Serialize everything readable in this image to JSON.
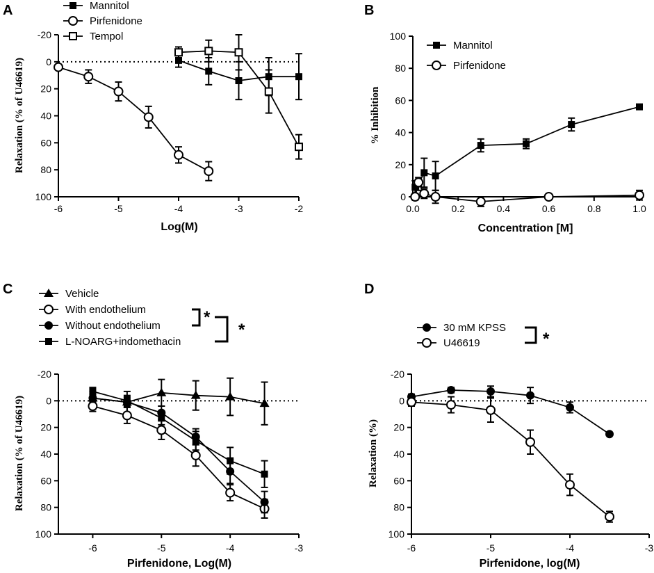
{
  "figure": {
    "colors": {
      "ink": "#000000",
      "open_fill": "#ffffff",
      "filled": "#000000"
    }
  },
  "chart_data": [
    {
      "panel": "A",
      "type": "line",
      "xlabel": "Log(M)",
      "ylabel": "Relaxation (% of U46619)",
      "xlim": [
        -6,
        -2
      ],
      "ylim": [
        -20,
        100
      ],
      "y_inverted": true,
      "xticks": [
        -6,
        -5,
        -4,
        -3,
        -2
      ],
      "yticks": [
        -20,
        0,
        20,
        40,
        60,
        80,
        100
      ],
      "reference_line": 0,
      "legend_position": "top-left",
      "series": [
        {
          "name": "Mannitol",
          "marker": "square-filled",
          "points": [
            {
              "x": -4,
              "y": -1,
              "err": 5
            },
            {
              "x": -3.5,
              "y": 7,
              "err": 10
            },
            {
              "x": -3,
              "y": 14,
              "err": 14
            },
            {
              "x": -2.5,
              "y": 11,
              "err": 14
            },
            {
              "x": -2,
              "y": 11,
              "err": 17
            }
          ]
        },
        {
          "name": "Pirfenidone",
          "marker": "circle-open",
          "points": [
            {
              "x": -6,
              "y": 4,
              "err": 0
            },
            {
              "x": -5.5,
              "y": 11,
              "err": 5
            },
            {
              "x": -5,
              "y": 22,
              "err": 7
            },
            {
              "x": -4.5,
              "y": 41,
              "err": 8
            },
            {
              "x": -4,
              "y": 69,
              "err": 6
            },
            {
              "x": -3.5,
              "y": 81,
              "err": 7
            }
          ]
        },
        {
          "name": "Tempol",
          "marker": "square-open",
          "points": [
            {
              "x": -4,
              "y": -7,
              "err": 4
            },
            {
              "x": -3.5,
              "y": -8,
              "err": 8
            },
            {
              "x": -3,
              "y": -7,
              "err": 13
            },
            {
              "x": -2.5,
              "y": 22,
              "err": 16
            },
            {
              "x": -2,
              "y": 63,
              "err": 9
            }
          ]
        }
      ]
    },
    {
      "panel": "B",
      "type": "line",
      "xlabel": "Concentration [M]",
      "ylabel": "% Inhibition",
      "xlim": [
        0,
        1.0
      ],
      "ylim": [
        0,
        100
      ],
      "y_inverted": false,
      "xticks": [
        "0.0",
        "0.2",
        "0.4",
        "0.6",
        "0.8",
        "1.0"
      ],
      "yticks": [
        0,
        20,
        40,
        60,
        80,
        100
      ],
      "legend_position": "top-left",
      "series": [
        {
          "name": "Mannitol",
          "marker": "square-filled",
          "points": [
            {
              "x": 0.01,
              "y": 6,
              "err": 4
            },
            {
              "x": 0.025,
              "y": 8,
              "err": 4
            },
            {
              "x": 0.05,
              "y": 15,
              "err": 9
            },
            {
              "x": 0.1,
              "y": 13,
              "err": 9
            },
            {
              "x": 0.3,
              "y": 32,
              "err": 4
            },
            {
              "x": 0.5,
              "y": 33,
              "err": 3
            },
            {
              "x": 0.7,
              "y": 45,
              "err": 4
            },
            {
              "x": 1.0,
              "y": 56,
              "err": 1
            }
          ]
        },
        {
          "name": "Pirfenidone",
          "marker": "circle-open",
          "points": [
            {
              "x": 0.01,
              "y": 0,
              "err": 2
            },
            {
              "x": 0.025,
              "y": 9,
              "err": 2
            },
            {
              "x": 0.05,
              "y": 2,
              "err": 3
            },
            {
              "x": 0.1,
              "y": 0,
              "err": 4
            },
            {
              "x": 0.3,
              "y": -3,
              "err": 3
            },
            {
              "x": 0.6,
              "y": 0,
              "err": 1
            },
            {
              "x": 1.0,
              "y": 1,
              "err": 3
            }
          ]
        }
      ]
    },
    {
      "panel": "C",
      "type": "line",
      "xlabel": "Pirfenidone, Log(M)",
      "ylabel": "Relaxation (% of U46619)",
      "xlim": [
        -6.5,
        -3
      ],
      "ylim": [
        -20,
        100
      ],
      "y_inverted": true,
      "xticks": [
        -6,
        -5,
        -4,
        -3
      ],
      "yticks": [
        -20,
        0,
        20,
        40,
        60,
        80,
        100
      ],
      "reference_line": 0,
      "legend_position": "top-left",
      "significance": [
        "*",
        "*"
      ],
      "series": [
        {
          "name": "Vehicle",
          "marker": "triangle-filled",
          "points": [
            {
              "x": -6,
              "y": -2,
              "err": 5
            },
            {
              "x": -5.5,
              "y": 1,
              "err": 8
            },
            {
              "x": -5,
              "y": -6,
              "err": 10
            },
            {
              "x": -4.5,
              "y": -4,
              "err": 11
            },
            {
              "x": -4,
              "y": -3,
              "err": 14
            },
            {
              "x": -3.5,
              "y": 2,
              "err": 16
            }
          ]
        },
        {
          "name": "With endothelium",
          "marker": "circle-open",
          "points": [
            {
              "x": -6,
              "y": 4,
              "err": 4
            },
            {
              "x": -5.5,
              "y": 11,
              "err": 6
            },
            {
              "x": -5,
              "y": 22,
              "err": 7
            },
            {
              "x": -4.5,
              "y": 41,
              "err": 8
            },
            {
              "x": -4,
              "y": 69,
              "err": 6
            },
            {
              "x": -3.5,
              "y": 81,
              "err": 7
            }
          ]
        },
        {
          "name": "Without endothelium",
          "marker": "circle-filled",
          "points": [
            {
              "x": -6,
              "y": -2,
              "err": 3
            },
            {
              "x": -5.5,
              "y": 1,
              "err": 4
            },
            {
              "x": -5,
              "y": 9,
              "err": 5
            },
            {
              "x": -4.5,
              "y": 27,
              "err": 6
            },
            {
              "x": -4,
              "y": 53,
              "err": 9
            },
            {
              "x": -3.5,
              "y": 76,
              "err": 8
            }
          ]
        },
        {
          "name": "L-NOARG+indomethacin",
          "marker": "square-filled",
          "points": [
            {
              "x": -6,
              "y": -7,
              "err": 3
            },
            {
              "x": -5.5,
              "y": 0,
              "err": 4
            },
            {
              "x": -5,
              "y": 13,
              "err": 5
            },
            {
              "x": -4.5,
              "y": 30,
              "err": 7
            },
            {
              "x": -4,
              "y": 45,
              "err": 10
            },
            {
              "x": -3.5,
              "y": 55,
              "err": 10
            }
          ]
        }
      ]
    },
    {
      "panel": "D",
      "type": "line",
      "xlabel": "Pirfenidone, log(M)",
      "ylabel": "Relaxation (%)",
      "xlim": [
        -6,
        -3
      ],
      "ylim": [
        -20,
        100
      ],
      "y_inverted": true,
      "xticks": [
        -6,
        -5,
        -4,
        -3
      ],
      "yticks": [
        -20,
        0,
        20,
        40,
        60,
        80,
        100
      ],
      "reference_line": 0,
      "legend_position": "top-left",
      "significance": [
        "*"
      ],
      "series": [
        {
          "name": "30 mM KPSS",
          "marker": "circle-filled",
          "points": [
            {
              "x": -6,
              "y": -3,
              "err": 2
            },
            {
              "x": -5.5,
              "y": -8,
              "err": 2
            },
            {
              "x": -5,
              "y": -7,
              "err": 4
            },
            {
              "x": -4.5,
              "y": -4,
              "err": 6
            },
            {
              "x": -4,
              "y": 5,
              "err": 4
            },
            {
              "x": -3.5,
              "y": 25,
              "err": 1
            }
          ]
        },
        {
          "name": "U46619",
          "marker": "circle-open",
          "points": [
            {
              "x": -6,
              "y": 1,
              "err": 3
            },
            {
              "x": -5.5,
              "y": 3,
              "err": 6
            },
            {
              "x": -5,
              "y": 7,
              "err": 9
            },
            {
              "x": -4.5,
              "y": 31,
              "err": 9
            },
            {
              "x": -4,
              "y": 63,
              "err": 8
            },
            {
              "x": -3.5,
              "y": 87,
              "err": 4
            }
          ]
        }
      ]
    }
  ]
}
